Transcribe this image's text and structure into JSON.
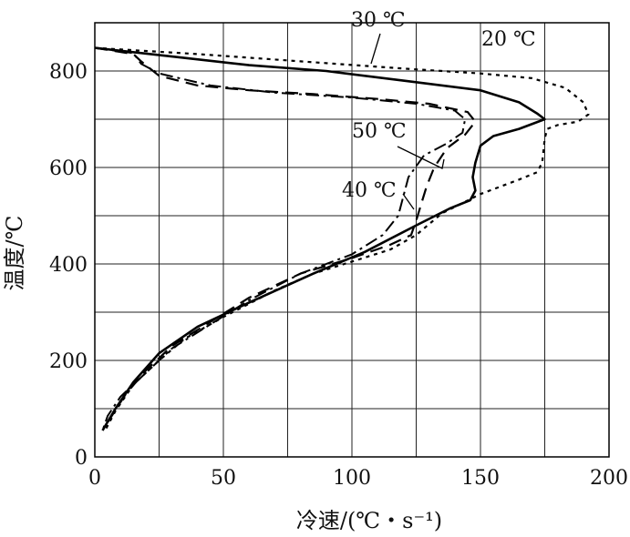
{
  "chart_data": {
    "type": "line",
    "xlabel": "冷速/(℃・s⁻¹)",
    "ylabel": "温度/℃",
    "xlim": [
      0,
      200
    ],
    "ylim": [
      0,
      900
    ],
    "xticks": [
      "0",
      "50",
      "100",
      "150",
      "200"
    ],
    "yticks": [
      "0",
      "200",
      "400",
      "600",
      "800"
    ],
    "grid": true,
    "annotations": [
      "30 ℃",
      "20 ℃",
      "50 ℃",
      "40 ℃"
    ],
    "series": [
      {
        "name": "20 ℃",
        "style": "dotted",
        "points": [
          [
            0,
            848
          ],
          [
            40,
            835
          ],
          [
            80,
            820
          ],
          [
            120,
            805
          ],
          [
            150,
            795
          ],
          [
            170,
            785
          ],
          [
            183,
            765
          ],
          [
            190,
            735
          ],
          [
            192,
            710
          ],
          [
            188,
            695
          ],
          [
            180,
            688
          ],
          [
            176,
            680
          ],
          [
            175,
            660
          ],
          [
            174,
            610
          ],
          [
            172,
            590
          ],
          [
            165,
            575
          ],
          [
            150,
            545
          ],
          [
            135,
            505
          ],
          [
            125,
            460
          ],
          [
            115,
            430
          ],
          [
            100,
            405
          ],
          [
            85,
            380
          ],
          [
            70,
            345
          ],
          [
            50,
            290
          ],
          [
            35,
            245
          ],
          [
            25,
            200
          ],
          [
            15,
            150
          ],
          [
            8,
            95
          ],
          [
            4,
            55
          ]
        ]
      },
      {
        "name": "30 ℃",
        "style": "solid",
        "points": [
          [
            0,
            848
          ],
          [
            30,
            830
          ],
          [
            60,
            812
          ],
          [
            90,
            800
          ],
          [
            120,
            780
          ],
          [
            150,
            760
          ],
          [
            165,
            735
          ],
          [
            172,
            712
          ],
          [
            175,
            700
          ],
          [
            165,
            680
          ],
          [
            155,
            665
          ],
          [
            150,
            645
          ],
          [
            148,
            610
          ],
          [
            147,
            580
          ],
          [
            148,
            552
          ],
          [
            146,
            532
          ],
          [
            138,
            515
          ],
          [
            125,
            480
          ],
          [
            105,
            425
          ],
          [
            85,
            380
          ],
          [
            60,
            320
          ],
          [
            40,
            270
          ],
          [
            25,
            215
          ],
          [
            15,
            155
          ],
          [
            8,
            100
          ],
          [
            3,
            55
          ]
        ]
      },
      {
        "name": "40 ℃",
        "style": "dashed",
        "points": [
          [
            0,
            848
          ],
          [
            15,
            835
          ],
          [
            18,
            820
          ],
          [
            25,
            790
          ],
          [
            40,
            770
          ],
          [
            60,
            760
          ],
          [
            85,
            752
          ],
          [
            110,
            742
          ],
          [
            130,
            732
          ],
          [
            145,
            715
          ],
          [
            148,
            695
          ],
          [
            144,
            668
          ],
          [
            137,
            640
          ],
          [
            132,
            600
          ],
          [
            129,
            560
          ],
          [
            127,
            525
          ],
          [
            125,
            490
          ],
          [
            123,
            460
          ],
          [
            115,
            440
          ],
          [
            100,
            412
          ],
          [
            80,
            380
          ],
          [
            60,
            330
          ],
          [
            45,
            280
          ],
          [
            30,
            230
          ],
          [
            20,
            180
          ],
          [
            12,
            130
          ],
          [
            6,
            80
          ],
          [
            3,
            55
          ]
        ]
      },
      {
        "name": "50 ℃",
        "style": "dashdot",
        "points": [
          [
            0,
            848
          ],
          [
            15,
            837
          ],
          [
            18,
            815
          ],
          [
            25,
            795
          ],
          [
            45,
            770
          ],
          [
            70,
            755
          ],
          [
            100,
            745
          ],
          [
            125,
            732
          ],
          [
            140,
            718
          ],
          [
            144,
            700
          ],
          [
            143,
            672
          ],
          [
            137,
            650
          ],
          [
            128,
            625
          ],
          [
            122,
            580
          ],
          [
            120,
            540
          ],
          [
            118,
            500
          ],
          [
            112,
            460
          ],
          [
            100,
            420
          ],
          [
            80,
            380
          ],
          [
            60,
            325
          ],
          [
            45,
            275
          ],
          [
            30,
            225
          ],
          [
            20,
            175
          ],
          [
            10,
            125
          ],
          [
            5,
            85
          ],
          [
            3,
            55
          ]
        ]
      }
    ]
  }
}
